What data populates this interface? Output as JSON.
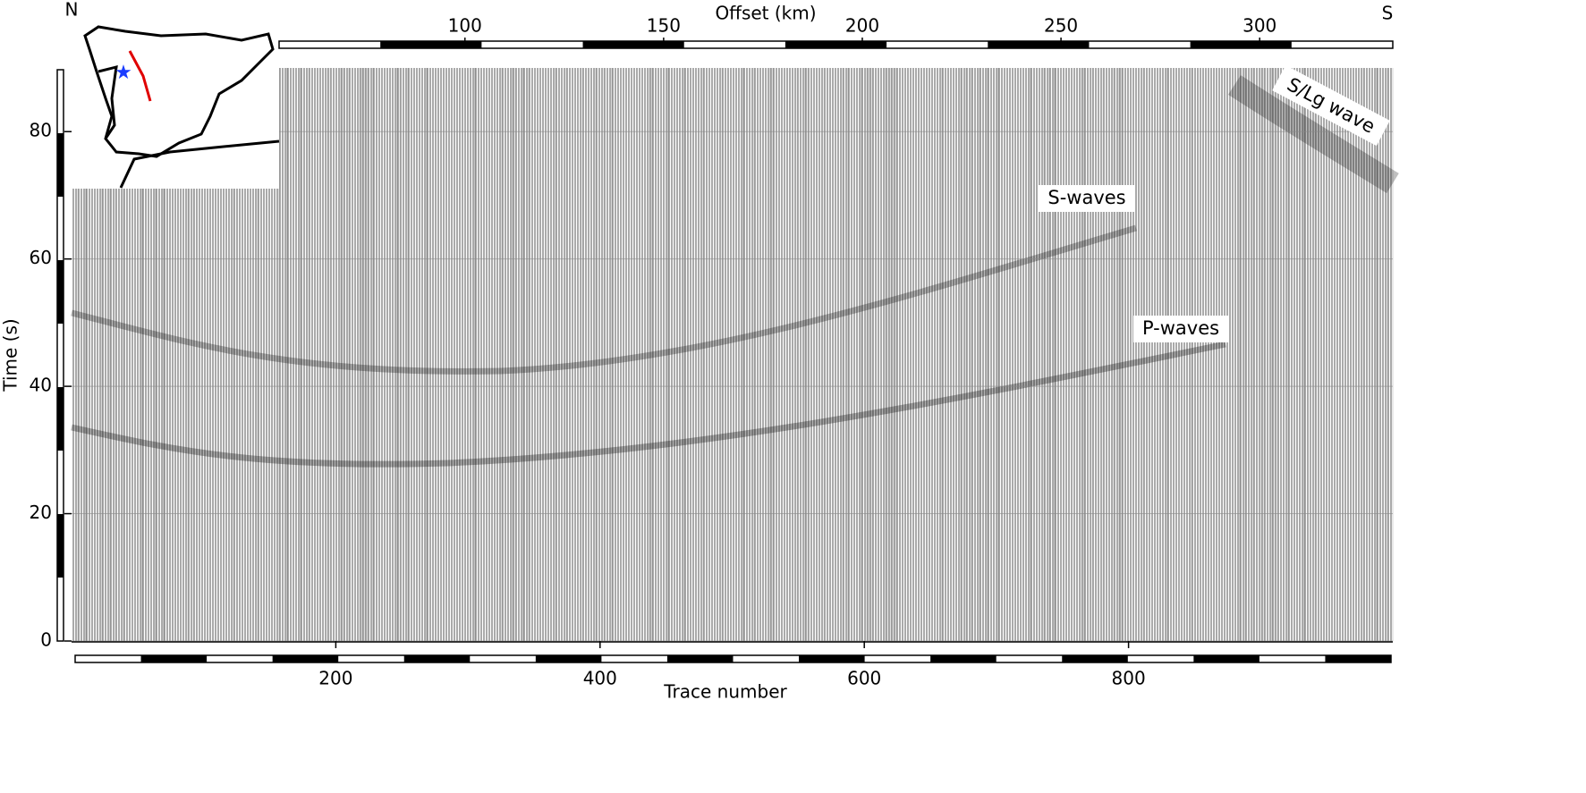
{
  "chart_data": {
    "type": "record-section",
    "xlabel": "Trace number",
    "ylabel": "Time (s)",
    "x2label": "Offset (km)",
    "xlim": [
      0,
      1000
    ],
    "xticks": [
      200,
      400,
      600,
      800
    ],
    "x2lim": [
      1,
      333.5
    ],
    "x2ticks": [
      100,
      150,
      200,
      250,
      300
    ],
    "ylim": [
      0,
      90
    ],
    "yticks": [
      0,
      20,
      40,
      60,
      80
    ],
    "grid": true,
    "direction_labels": [
      "N",
      "S"
    ],
    "annotations": [
      "S/Lg wave",
      "S-waves",
      "P-waves"
    ]
  }
}
